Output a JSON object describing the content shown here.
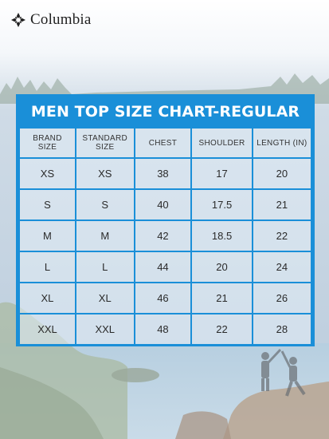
{
  "brand": {
    "name": "Columbia",
    "logo_icon": "columbia-diamond-icon",
    "logo_color": "#1f1f1f"
  },
  "chart": {
    "title": "MEN TOP SIZE CHART-REGULAR",
    "accent_color": "#1a8fd8",
    "headers": [
      [
        "BRAND",
        "SIZE"
      ],
      [
        "STANDARD",
        "SIZE"
      ],
      [
        "CHEST"
      ],
      [
        "SHOULDER"
      ],
      [
        "LENGTH (IN)"
      ]
    ],
    "rows": [
      [
        "XS",
        "XS",
        "38",
        "17",
        "20"
      ],
      [
        "S",
        "S",
        "40",
        "17.5",
        "21"
      ],
      [
        "M",
        "M",
        "42",
        "18.5",
        "22"
      ],
      [
        "L",
        "L",
        "44",
        "20",
        "24"
      ],
      [
        "XL",
        "XL",
        "46",
        "21",
        "26"
      ],
      [
        "XXL",
        "XXL",
        "48",
        "22",
        "28"
      ]
    ]
  }
}
